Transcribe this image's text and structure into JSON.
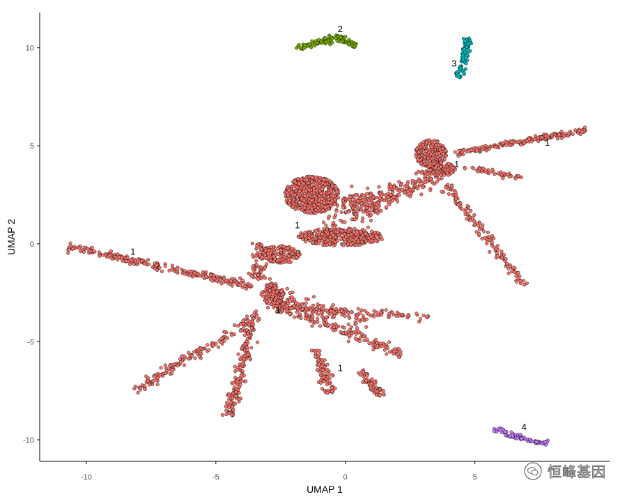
{
  "chart_data": {
    "type": "scatter",
    "title": "",
    "xlabel": "UMAP 1",
    "ylabel": "UMAP 2",
    "xlim": [
      -11.8,
      10.2
    ],
    "ylim": [
      -11.1,
      11.8
    ],
    "x_ticks": [
      -10,
      -5,
      0,
      5
    ],
    "x_tick_labels": [
      "-10",
      "-5",
      "0",
      "5"
    ],
    "y_ticks": [
      -10,
      -5,
      0,
      5,
      10
    ],
    "y_tick_labels": [
      "-10",
      "-5",
      "0",
      "5",
      "10"
    ],
    "grid": false,
    "legend": "none",
    "series": [
      {
        "cluster": "1",
        "color": "#F8766D",
        "segments": [
          {
            "x0": -10.7,
            "y0": -0.15,
            "x1": -3.6,
            "y1": -2.15,
            "n": 260,
            "spread": 0.09
          },
          {
            "x0": -2.8,
            "y0": -3.1,
            "x1": 2.3,
            "y1": -5.7,
            "n": 150,
            "spread": 0.12
          },
          {
            "x0": -2.8,
            "y0": -3.2,
            "x1": 3.2,
            "y1": -3.75,
            "n": 120,
            "spread": 0.1
          },
          {
            "x0": -3.3,
            "y0": -3.6,
            "x1": -8.1,
            "y1": -7.5,
            "n": 170,
            "spread": 0.12
          },
          {
            "x0": -3.6,
            "y0": -4.1,
            "x1": -4.5,
            "y1": -8.8,
            "n": 170,
            "spread": 0.12
          },
          {
            "x0": -1.2,
            "y0": -5.4,
            "x1": -0.5,
            "y1": -7.6,
            "n": 90,
            "spread": 0.12
          },
          {
            "x0": 0.6,
            "y0": -6.5,
            "x1": 1.4,
            "y1": -7.8,
            "n": 60,
            "spread": 0.12
          },
          {
            "x0": -2.9,
            "y0": -2.7,
            "x1": 0.8,
            "y1": -4.3,
            "n": 110,
            "spread": 0.3
          },
          {
            "x0": 4.2,
            "y0": 4.6,
            "x1": 9.3,
            "y1": 5.8,
            "n": 190,
            "spread": 0.07
          },
          {
            "x0": 4.6,
            "y0": 3.9,
            "x1": 6.8,
            "y1": 3.35,
            "n": 50,
            "spread": 0.07
          },
          {
            "x0": 3.9,
            "y0": 3.0,
            "x1": 6.9,
            "y1": -2.1,
            "n": 140,
            "spread": 0.1
          },
          {
            "x0": 1.4,
            "y0": 2.3,
            "x1": 3.6,
            "y1": 3.6,
            "n": 140,
            "spread": 0.25
          },
          {
            "x0": -0.9,
            "y0": 1.2,
            "x1": 1.6,
            "y1": 1.9,
            "n": 80,
            "spread": 0.5
          },
          {
            "x0": -3.4,
            "y0": -1.8,
            "x1": -3.2,
            "y1": 0.0,
            "n": 80,
            "spread": 0.2
          }
        ],
        "blobs": [
          {
            "cx": -1.3,
            "cy": 2.5,
            "rx": 1.05,
            "ry": 0.95,
            "n": 550
          },
          {
            "cx": -0.2,
            "cy": 0.35,
            "rx": 1.7,
            "ry": 0.45,
            "n": 380
          },
          {
            "cx": -2.5,
            "cy": -0.55,
            "rx": 0.75,
            "ry": 0.45,
            "n": 160
          },
          {
            "cx": -2.8,
            "cy": -2.55,
            "rx": 0.45,
            "ry": 0.55,
            "n": 120
          },
          {
            "cx": 3.3,
            "cy": 4.6,
            "rx": 0.6,
            "ry": 0.7,
            "n": 230
          },
          {
            "cx": 3.7,
            "cy": 3.8,
            "rx": 0.55,
            "ry": 0.35,
            "n": 80
          },
          {
            "cx": 0.6,
            "cy": 2.0,
            "rx": 0.8,
            "ry": 0.55,
            "n": 110
          }
        ],
        "label_positions": [
          {
            "text": "1",
            "x": -8.2,
            "y": -0.55
          },
          {
            "text": "1",
            "x": -1.85,
            "y": 0.8
          },
          {
            "text": "1",
            "x": -2.6,
            "y": -3.55
          },
          {
            "text": "1",
            "x": -0.2,
            "y": -6.5
          },
          {
            "text": "1",
            "x": 4.3,
            "y": 3.9
          },
          {
            "text": "1",
            "x": 7.8,
            "y": 5.0
          }
        ]
      },
      {
        "cluster": "2",
        "color": "#7CAE00",
        "segments": [
          {
            "x0": -1.9,
            "y0": 10.0,
            "x1": -0.2,
            "y1": 10.55,
            "n": 70,
            "spread": 0.08
          },
          {
            "x0": -0.2,
            "y0": 10.55,
            "x1": 0.4,
            "y1": 10.1,
            "n": 40,
            "spread": 0.07
          }
        ],
        "blobs": [],
        "label_positions": [
          {
            "text": "2",
            "x": -0.2,
            "y": 10.8
          }
        ]
      },
      {
        "cluster": "3",
        "color": "#00BFC4",
        "segments": [
          {
            "x0": 4.4,
            "y0": 8.5,
            "x1": 4.75,
            "y1": 10.5,
            "n": 90,
            "spread": 0.09
          }
        ],
        "blobs": [],
        "label_positions": [
          {
            "text": "3",
            "x": 4.2,
            "y": 9.05
          }
        ]
      },
      {
        "cluster": "4",
        "color": "#C77CFF",
        "segments": [
          {
            "x0": 5.7,
            "y0": -9.45,
            "x1": 7.2,
            "y1": -10.05,
            "n": 60,
            "spread": 0.06
          },
          {
            "x0": 7.2,
            "y0": -10.05,
            "x1": 7.8,
            "y1": -10.2,
            "n": 30,
            "spread": 0.05
          }
        ],
        "blobs": [],
        "label_positions": [
          {
            "text": "4",
            "x": 6.9,
            "y": -9.5
          }
        ]
      }
    ]
  },
  "watermark": {
    "icon": "wechat-icon",
    "text": "恒峰基因"
  }
}
